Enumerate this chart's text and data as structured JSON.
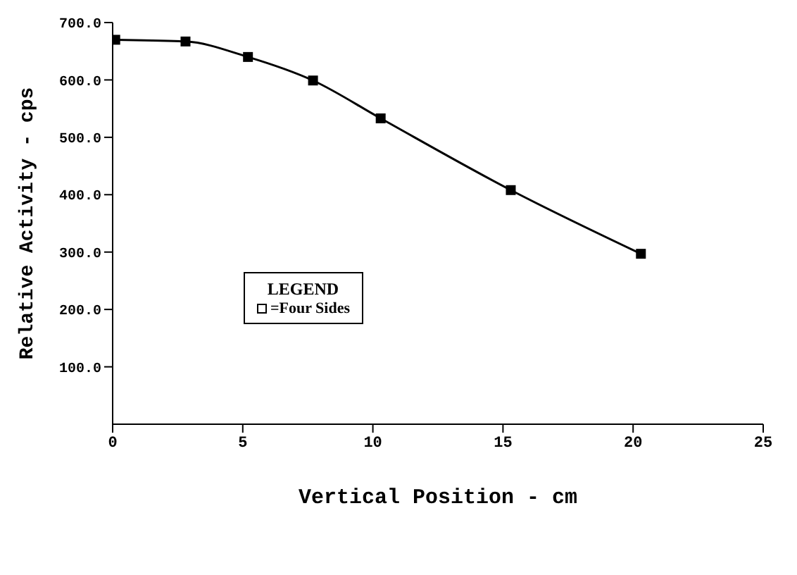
{
  "chart_data": {
    "type": "line",
    "xlabel": "Vertical Position - cm",
    "ylabel": "Relative Activity - cps",
    "legend_title": "LEGEND",
    "x": [
      0.1,
      2.8,
      5.2,
      7.7,
      10.3,
      15.3,
      20.3
    ],
    "series": [
      {
        "name": "=Four Sides",
        "color": "#000000",
        "values": [
          670,
          667,
          640,
          599,
          533,
          408,
          297
        ]
      }
    ],
    "xlim": [
      0,
      25
    ],
    "xticks": [
      0,
      5,
      10,
      15,
      20,
      25
    ],
    "ylim": [
      0,
      700
    ],
    "yticks": [
      {
        "value": 100,
        "label": "100.0"
      },
      {
        "value": 200,
        "label": "200.0"
      },
      {
        "value": 300,
        "label": "300.0"
      },
      {
        "value": 400,
        "label": "400.0"
      },
      {
        "value": 500,
        "label": "500.0"
      },
      {
        "value": 600,
        "label": "600.0"
      },
      {
        "value": 700,
        "label": "700.0"
      }
    ],
    "legend": "left",
    "marker": "square",
    "line_style": "solid"
  }
}
